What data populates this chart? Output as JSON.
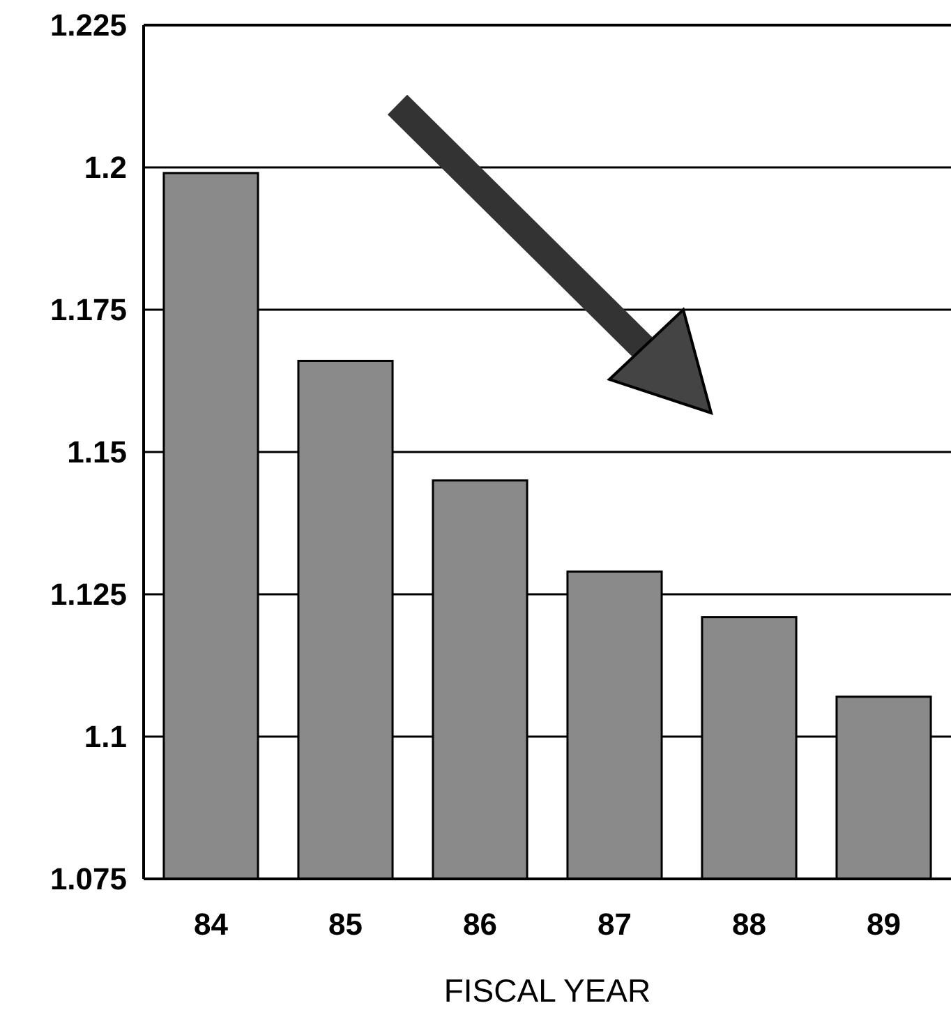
{
  "chart_data": {
    "type": "bar",
    "xlabel": "FISCAL YEAR",
    "categories": [
      "84",
      "85",
      "86",
      "87",
      "88",
      "89"
    ],
    "values": [
      1.199,
      1.166,
      1.145,
      1.129,
      1.121,
      1.107
    ],
    "color": "#8a8a8a",
    "ylim": [
      1.075,
      1.225
    ],
    "yticks": [
      1.075,
      1.1,
      1.125,
      1.15,
      1.175,
      1.2,
      1.225
    ],
    "grid": "y"
  }
}
